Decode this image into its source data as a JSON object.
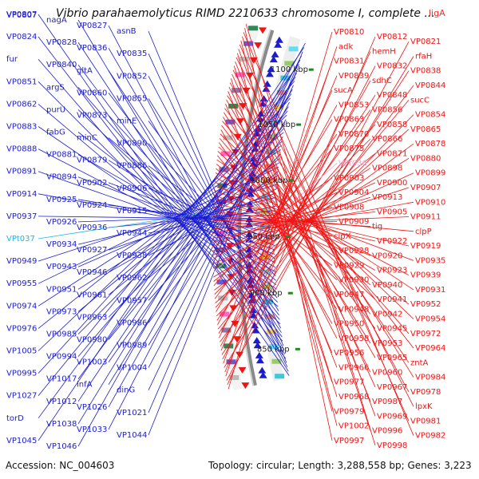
{
  "header": {
    "title": "Vibrio parahaemolyticus RIMD 2210633 chromosome I, complete ...",
    "title_gene": "ligA",
    "top_left_gene": "VP0807"
  },
  "footer": {
    "accession": "Accession: NC_004603",
    "topology": "Topology: circular; Length: 3,288,558 bp; Genes: 3,223"
  },
  "colors": {
    "forward": "#1c1ccf",
    "reverse": "#f01414",
    "trna_forward": "#20b4e6",
    "trna_reverse": "#f0a0c8",
    "backbone": "#8a8a8a",
    "tick": "#1f8a1f"
  },
  "scale_ticks": [
    {
      "label": "850 kbp"
    },
    {
      "label": "900 kbp"
    },
    {
      "label": "950 kbp"
    },
    {
      "label": "1000 kbp"
    },
    {
      "label": "1050 kbp"
    },
    {
      "label": "1100 kbp"
    }
  ],
  "forward_labels": [
    {
      "text": "VP0807",
      "color": "#1c1ccf"
    },
    {
      "text": "nagA",
      "color": "#1c1ccf"
    },
    {
      "text": "VP0827",
      "color": "#1c1ccf"
    },
    {
      "text": "asnB",
      "color": "#1c1ccf"
    },
    {
      "text": "VP0824",
      "color": "#1c1ccf"
    },
    {
      "text": "VP0828",
      "color": "#1c1ccf"
    },
    {
      "text": "VP0836",
      "color": "#1c1ccf"
    },
    {
      "text": "VP0835",
      "color": "#1c1ccf"
    },
    {
      "text": "fur",
      "color": "#1c1ccf"
    },
    {
      "text": "VP0840",
      "color": "#1c1ccf"
    },
    {
      "text": "gltA",
      "color": "#1c1ccf"
    },
    {
      "text": "VP0852",
      "color": "#1c1ccf"
    },
    {
      "text": "VP0851",
      "color": "#1c1ccf"
    },
    {
      "text": "argS",
      "color": "#1c1ccf"
    },
    {
      "text": "VP0860",
      "color": "#1c1ccf"
    },
    {
      "text": "VP0855",
      "color": "#1c1ccf"
    },
    {
      "text": "VP0862",
      "color": "#1c1ccf"
    },
    {
      "text": "purU",
      "color": "#1c1ccf"
    },
    {
      "text": "VP0873",
      "color": "#1c1ccf"
    },
    {
      "text": "minE",
      "color": "#1c1ccf"
    },
    {
      "text": "VP0883",
      "color": "#1c1ccf"
    },
    {
      "text": "fabG",
      "color": "#1c1ccf"
    },
    {
      "text": "minC",
      "color": "#1c1ccf"
    },
    {
      "text": "VP0890",
      "color": "#1c1ccf"
    },
    {
      "text": "VP0888",
      "color": "#1c1ccf"
    },
    {
      "text": "VP0881",
      "color": "#1c1ccf"
    },
    {
      "text": "VP0879",
      "color": "#1c1ccf"
    },
    {
      "text": "VP0886",
      "color": "#1c1ccf"
    },
    {
      "text": "VP0891",
      "color": "#1c1ccf"
    },
    {
      "text": "VP0894",
      "color": "#1c1ccf"
    },
    {
      "text": "VP0902",
      "color": "#1c1ccf"
    },
    {
      "text": "VP0906",
      "color": "#1c1ccf"
    },
    {
      "text": "VP0914",
      "color": "#1c1ccf"
    },
    {
      "text": "VP0925",
      "color": "#1c1ccf"
    },
    {
      "text": "VP0924",
      "color": "#1c1ccf"
    },
    {
      "text": "VP0915",
      "color": "#1c1ccf"
    },
    {
      "text": "VP0937",
      "color": "#1c1ccf"
    },
    {
      "text": "VP0926",
      "color": "#1c1ccf"
    },
    {
      "text": "VP0936",
      "color": "#1c1ccf"
    },
    {
      "text": "VP0944",
      "color": "#1c1ccf"
    },
    {
      "text": "VPt037",
      "color": "#20b4e6"
    },
    {
      "text": "VP0934",
      "color": "#1c1ccf"
    },
    {
      "text": "VP0927",
      "color": "#1c1ccf"
    },
    {
      "text": "VP0938",
      "color": "#1c1ccf"
    },
    {
      "text": "VP0949",
      "color": "#1c1ccf"
    },
    {
      "text": "VP0943",
      "color": "#1c1ccf"
    },
    {
      "text": "VP0946",
      "color": "#1c1ccf"
    },
    {
      "text": "VP0962",
      "color": "#1c1ccf"
    },
    {
      "text": "VP0955",
      "color": "#1c1ccf"
    },
    {
      "text": "VP0951",
      "color": "#1c1ccf"
    },
    {
      "text": "VP0961",
      "color": "#1c1ccf"
    },
    {
      "text": "VP0957",
      "color": "#1c1ccf"
    },
    {
      "text": "VP0974",
      "color": "#1c1ccf"
    },
    {
      "text": "VP0973",
      "color": "#1c1ccf"
    },
    {
      "text": "VP0963",
      "color": "#1c1ccf"
    },
    {
      "text": "VP0986",
      "color": "#1c1ccf"
    },
    {
      "text": "VP0976",
      "color": "#1c1ccf"
    },
    {
      "text": "VP0985",
      "color": "#1c1ccf"
    },
    {
      "text": "VP0980",
      "color": "#1c1ccf"
    },
    {
      "text": "VP0989",
      "color": "#1c1ccf"
    },
    {
      "text": "VP1005",
      "color": "#1c1ccf"
    },
    {
      "text": "VP0994",
      "color": "#1c1ccf"
    },
    {
      "text": "VP1003",
      "color": "#1c1ccf"
    },
    {
      "text": "VP1004",
      "color": "#1c1ccf"
    },
    {
      "text": "VP0995",
      "color": "#1c1ccf"
    },
    {
      "text": "VP1017",
      "color": "#1c1ccf"
    },
    {
      "text": "infA",
      "color": "#1c1ccf"
    },
    {
      "text": "dinG",
      "color": "#1c1ccf"
    },
    {
      "text": "VP1027",
      "color": "#1c1ccf"
    },
    {
      "text": "VP1012",
      "color": "#1c1ccf"
    },
    {
      "text": "VP1026",
      "color": "#1c1ccf"
    },
    {
      "text": "VP1021",
      "color": "#1c1ccf"
    },
    {
      "text": "torD",
      "color": "#1c1ccf"
    },
    {
      "text": "VP1038",
      "color": "#1c1ccf"
    },
    {
      "text": "VP1033",
      "color": "#1c1ccf"
    },
    {
      "text": "VP1044",
      "color": "#1c1ccf"
    },
    {
      "text": "VP1045",
      "color": "#1c1ccf"
    },
    {
      "text": "VP1046",
      "color": "#1c1ccf"
    }
  ],
  "reverse_labels": [
    {
      "text": "VP0810",
      "color": "#f01414"
    },
    {
      "text": "VP0812",
      "color": "#f01414"
    },
    {
      "text": "VP0821",
      "color": "#f01414"
    },
    {
      "text": "adk",
      "color": "#f01414"
    },
    {
      "text": "hemH",
      "color": "#f01414"
    },
    {
      "text": "rfaH",
      "color": "#f01414"
    },
    {
      "text": "VP0831",
      "color": "#f01414"
    },
    {
      "text": "VP0832",
      "color": "#f01414"
    },
    {
      "text": "VP0838",
      "color": "#f01414"
    },
    {
      "text": "VP0839",
      "color": "#f01414"
    },
    {
      "text": "sdhC",
      "color": "#f01414"
    },
    {
      "text": "VP0844",
      "color": "#f01414"
    },
    {
      "text": "sucA",
      "color": "#f01414"
    },
    {
      "text": "VP0848",
      "color": "#f01414"
    },
    {
      "text": "sucC",
      "color": "#f01414"
    },
    {
      "text": "VP0853",
      "color": "#f01414"
    },
    {
      "text": "VP0856",
      "color": "#f01414"
    },
    {
      "text": "VP0854",
      "color": "#f01414"
    },
    {
      "text": "VP0863",
      "color": "#f01414"
    },
    {
      "text": "VP0858",
      "color": "#f01414"
    },
    {
      "text": "VP0865",
      "color": "#f01414"
    },
    {
      "text": "VP0870",
      "color": "#f01414"
    },
    {
      "text": "VP0866",
      "color": "#f01414"
    },
    {
      "text": "VP0878",
      "color": "#f01414"
    },
    {
      "text": "VP0875",
      "color": "#f01414"
    },
    {
      "text": "VP0871",
      "color": "#f01414"
    },
    {
      "text": "VP0880",
      "color": "#f01414"
    },
    {
      "text": "VPt036",
      "color": "#f0a0c8"
    },
    {
      "text": "VP0898",
      "color": "#f01414"
    },
    {
      "text": "VP0899",
      "color": "#f01414"
    },
    {
      "text": "VP0903",
      "color": "#f01414"
    },
    {
      "text": "VP0900",
      "color": "#f01414"
    },
    {
      "text": "VP0907",
      "color": "#f01414"
    },
    {
      "text": "VP0904",
      "color": "#f01414"
    },
    {
      "text": "VP0913",
      "color": "#f01414"
    },
    {
      "text": "VP0910",
      "color": "#f01414"
    },
    {
      "text": "VP0908",
      "color": "#f01414"
    },
    {
      "text": "VP0905",
      "color": "#f01414"
    },
    {
      "text": "VP0911",
      "color": "#f01414"
    },
    {
      "text": "VP0909",
      "color": "#f01414"
    },
    {
      "text": "tig",
      "color": "#f01414"
    },
    {
      "text": "clpP",
      "color": "#f01414"
    },
    {
      "text": "clpX",
      "color": "#f01414"
    },
    {
      "text": "VP0922",
      "color": "#f01414"
    },
    {
      "text": "VP0919",
      "color": "#f01414"
    },
    {
      "text": "VP0928",
      "color": "#f01414"
    },
    {
      "text": "VP0920",
      "color": "#f01414"
    },
    {
      "text": "VP0935",
      "color": "#f01414"
    },
    {
      "text": "VP0929",
      "color": "#f01414"
    },
    {
      "text": "VP0923",
      "color": "#f01414"
    },
    {
      "text": "VP0939",
      "color": "#f01414"
    },
    {
      "text": "VP0930",
      "color": "#f01414"
    },
    {
      "text": "VP0940",
      "color": "#f01414"
    },
    {
      "text": "VP0931",
      "color": "#f01414"
    },
    {
      "text": "VP0947",
      "color": "#f01414"
    },
    {
      "text": "VP0941",
      "color": "#f01414"
    },
    {
      "text": "VP0952",
      "color": "#f01414"
    },
    {
      "text": "VP0948",
      "color": "#f01414"
    },
    {
      "text": "VP0942",
      "color": "#f01414"
    },
    {
      "text": "VP0954",
      "color": "#f01414"
    },
    {
      "text": "VP0950",
      "color": "#f01414"
    },
    {
      "text": "VP0945",
      "color": "#f01414"
    },
    {
      "text": "VP0972",
      "color": "#f01414"
    },
    {
      "text": "VP0958",
      "color": "#f01414"
    },
    {
      "text": "VP0953",
      "color": "#f01414"
    },
    {
      "text": "VP0964",
      "color": "#f01414"
    },
    {
      "text": "VP0956",
      "color": "#f01414"
    },
    {
      "text": "VP0965",
      "color": "#f01414"
    },
    {
      "text": "zntA",
      "color": "#f01414"
    },
    {
      "text": "VP0966",
      "color": "#f01414"
    },
    {
      "text": "VP0960",
      "color": "#f01414"
    },
    {
      "text": "VP0984",
      "color": "#f01414"
    },
    {
      "text": "VP0977",
      "color": "#f01414"
    },
    {
      "text": "VP0967",
      "color": "#f01414"
    },
    {
      "text": "VP0978",
      "color": "#f01414"
    },
    {
      "text": "VP0968",
      "color": "#f01414"
    },
    {
      "text": "VP0987",
      "color": "#f01414"
    },
    {
      "text": "lpxK",
      "color": "#f01414"
    },
    {
      "text": "VP0979",
      "color": "#f01414"
    },
    {
      "text": "VP0969",
      "color": "#f01414"
    },
    {
      "text": "VP0981",
      "color": "#f01414"
    },
    {
      "text": "VP1002",
      "color": "#f01414"
    },
    {
      "text": "VP0996",
      "color": "#f01414"
    },
    {
      "text": "VP0982",
      "color": "#f01414"
    },
    {
      "text": "VP0997",
      "color": "#f01414"
    },
    {
      "text": "VP0998",
      "color": "#f01414"
    }
  ]
}
